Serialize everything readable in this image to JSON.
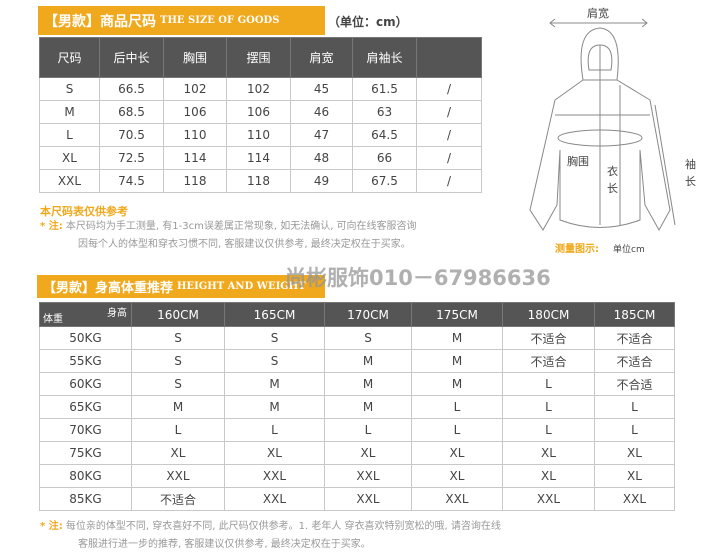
{
  "size_table": {
    "banner_cn": "【男款】商品尺码",
    "banner_en": "THE SIZE OF GOODS",
    "unit": "（单位：cm）",
    "headers": [
      "尺码",
      "后中长",
      "胸围",
      "摆围",
      "肩宽",
      "肩袖长",
      ""
    ],
    "rows": [
      [
        "S",
        "66.5",
        "102",
        "102",
        "45",
        "61.5",
        "/"
      ],
      [
        "M",
        "68.5",
        "106",
        "106",
        "46",
        "63",
        "/"
      ],
      [
        "L",
        "70.5",
        "110",
        "110",
        "47",
        "64.5",
        "/"
      ],
      [
        "XL",
        "72.5",
        "114",
        "114",
        "48",
        "66",
        "/"
      ],
      [
        "XXL",
        "74.5",
        "118",
        "118",
        "49",
        "67.5",
        "/"
      ]
    ],
    "ref_title": "本尺码表仅供参考",
    "note_label": "* 注:",
    "note_line1": "本尺码均为手工测量, 有1-3cm误差属正常现象, 如无法确认, 可向在线客服咨询",
    "note_line2": "因每个人的体型和穿衣习惯不同, 客服建议仅供参考, 最终决定权在于买家。"
  },
  "diagram": {
    "shoulder": "肩宽",
    "chest": "胸围",
    "length1": "衣",
    "length2": "长",
    "sleeve1": "袖",
    "sleeve2": "长",
    "caption_label": "测量图示:",
    "caption_unit": "单位cm"
  },
  "watermark": "尚彬服饰010－67986636",
  "rec_table": {
    "banner_cn": "【男款】身高体重推荐",
    "banner_en": "HEIGHT AND WEIGHT",
    "corner_height": "身高",
    "corner_weight": "体重",
    "headers": [
      "160CM",
      "165CM",
      "170CM",
      "175CM",
      "180CM",
      "185CM"
    ],
    "rows": [
      [
        "50KG",
        "S",
        "S",
        "S",
        "M",
        "不适合",
        "不适合"
      ],
      [
        "55KG",
        "S",
        "S",
        "M",
        "M",
        "不适合",
        "不适合"
      ],
      [
        "60KG",
        "S",
        "M",
        "M",
        "M",
        "L",
        "不合适"
      ],
      [
        "65KG",
        "M",
        "M",
        "M",
        "L",
        "L",
        "L"
      ],
      [
        "70KG",
        "L",
        "L",
        "L",
        "L",
        "L",
        "L"
      ],
      [
        "75KG",
        "XL",
        "XL",
        "XL",
        "XL",
        "XL",
        "XL"
      ],
      [
        "80KG",
        "XXL",
        "XXL",
        "XXL",
        "XL",
        "XL",
        "XL"
      ],
      [
        "85KG",
        "不适合",
        "XXL",
        "XXL",
        "XXL",
        "XXL",
        "XXL"
      ]
    ],
    "note_label": "* 注:",
    "note_line1": "每位亲的体型不同, 穿衣喜好不同, 此尺码仅供参考。1. 老年人 穿衣喜欢特别宽松的哦, 请咨询在线",
    "note_line2": "客服进行进一步的推荐, 客服建议仅供参考, 最终决定权在于买家。"
  },
  "colors": {
    "accent": "#f0a81c",
    "header": "#555555"
  }
}
